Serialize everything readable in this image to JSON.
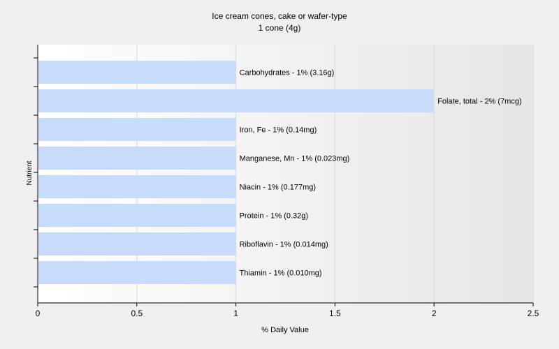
{
  "chart_data": {
    "type": "bar",
    "orientation": "horizontal",
    "title": "Ice cream cones, cake or wafer-type",
    "subtitle": "1 cone (4g)",
    "xlabel": "% Daily Value",
    "ylabel": "Nutrient",
    "xlim": [
      0,
      2.5
    ],
    "xticks": [
      "0",
      "0.5",
      "1",
      "1.5",
      "2",
      "2.5"
    ],
    "grid": true,
    "categories": [
      "Carbohydrates",
      "Folate, total",
      "Iron, Fe",
      "Manganese, Mn",
      "Niacin",
      "Protein",
      "Riboflavin",
      "Thiamin"
    ],
    "values": [
      1,
      2,
      1,
      1,
      1,
      1,
      1,
      1
    ],
    "bar_labels": [
      "Carbohydrates - 1% (3.16g)",
      "Folate, total - 2% (7mcg)",
      "Iron, Fe - 1% (0.14mg)",
      "Manganese, Mn - 1% (0.023mg)",
      "Niacin - 1% (0.177mg)",
      "Protein - 1% (0.32g)",
      "Riboflavin - 1% (0.014mg)",
      "Thiamin - 1% (0.010mg)"
    ],
    "bar_color": "#c6dcfa"
  }
}
